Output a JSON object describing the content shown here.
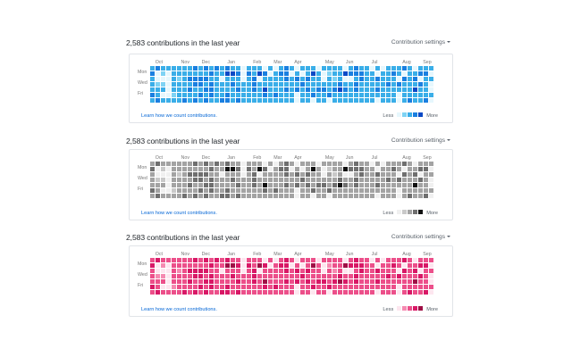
{
  "months": [
    "Oct",
    "Nov",
    "Dec",
    "Jan",
    "Feb",
    "Mar",
    "Apr",
    "May",
    "Jun",
    "Jul",
    "Aug",
    "Sep"
  ],
  "month_cols": [
    1,
    6,
    10,
    15,
    20,
    24,
    28,
    34,
    38,
    43,
    49,
    53
  ],
  "days": [
    "Mon",
    "Wed",
    "Fri"
  ],
  "panels": [
    {
      "title": "2,583 contributions in the last year",
      "settings_label": "Contribution settings",
      "learn_label": "Learn how we count contributions.",
      "less_label": "Less",
      "more_label": "More",
      "theme": "blue",
      "colors": [
        "#e6f7fd",
        "#7fd3f4",
        "#3aaee8",
        "#1a7fe0",
        "#0b49c6"
      ]
    },
    {
      "title": "2,583 contributions in the last year",
      "settings_label": "Contribution settings",
      "learn_label": "Learn how we count contributions.",
      "less_label": "Less",
      "more_label": "More",
      "theme": "gray",
      "colors": [
        "#f0f0f0",
        "#c9c9c9",
        "#a3a3a3",
        "#6f6f6f",
        "#111111"
      ]
    },
    {
      "title": "2,583 contributions in the last year",
      "settings_label": "Contribution settings",
      "learn_label": "Learn how we count contributions.",
      "less_label": "Less",
      "more_label": "More",
      "theme": "pink",
      "colors": [
        "#fde6ef",
        "#f58ab1",
        "#ec4f8a",
        "#d81866",
        "#9e0f45"
      ]
    }
  ],
  "grid": {
    "rows": 7,
    "cols": 53,
    "levels": [
      "23222222323232322022202023202220222202322020222320222",
      "30102222222322443032430233020242012243332202232022330",
      "20002123333220222023022223232322021200232232220323022",
      "21102222332322232223222222223222222322322222323222320",
      "22202223223322223223242223232323323432322232222224220",
      "32001222232322322222232322202232232222222222220222222",
      "23222232323223323222222222202202202222222202220232230"
    ]
  }
}
